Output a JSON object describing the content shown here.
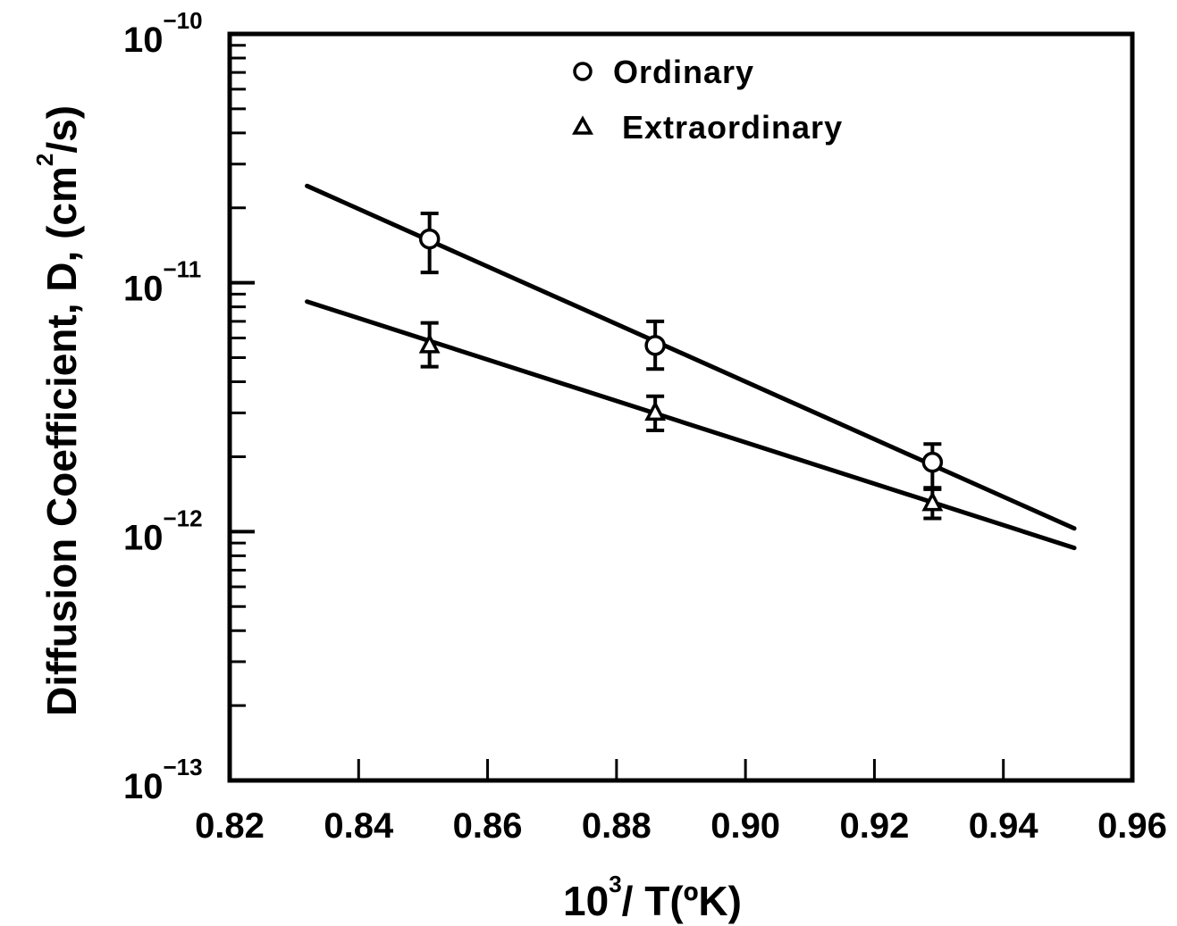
{
  "chart_data": {
    "type": "scatter",
    "title": "",
    "xlabel": {
      "base": "10",
      "sup": "3",
      "rest": "/ T(ºK)"
    },
    "ylabel": {
      "main": "Diffusion Coefficient, D, (cm",
      "sup": "2",
      "rest": "/s)"
    },
    "x_scale": "linear",
    "y_scale": "log",
    "xlim": [
      0.82,
      0.96
    ],
    "ylim": [
      1e-13,
      1e-10
    ],
    "x_ticks": [
      0.82,
      0.84,
      0.86,
      0.88,
      0.9,
      0.92,
      0.94,
      0.96
    ],
    "x_tick_labels": [
      "0.82",
      "0.84",
      "0.86",
      "0.88",
      "0.90",
      "0.92",
      "0.94",
      "0.96"
    ],
    "y_tick_labels": [
      {
        "value": 1e-10,
        "base": "10",
        "exp": "−10"
      },
      {
        "value": 1e-11,
        "base": "10",
        "exp": "−11"
      },
      {
        "value": 1e-12,
        "base": "10",
        "exp": "−12"
      },
      {
        "value": 1e-13,
        "base": "10",
        "exp": "−13"
      }
    ],
    "grid": false,
    "legend_position": "top-center",
    "series": [
      {
        "name": "Ordinary",
        "marker": "circle",
        "points": [
          {
            "x": 0.851,
            "y": 1.5e-11,
            "err_low": 1.1e-11,
            "err_high": 1.9e-11
          },
          {
            "x": 0.886,
            "y": 5.6e-12,
            "err_low": 4.5e-12,
            "err_high": 7e-12
          },
          {
            "x": 0.929,
            "y": 1.9e-12,
            "err_low": 1.5e-12,
            "err_high": 2.25e-12
          }
        ],
        "fit_line": [
          {
            "x": 0.832,
            "y": 2.45e-11
          },
          {
            "x": 0.951,
            "y": 1.03e-12
          }
        ]
      },
      {
        "name": "Extraordinary",
        "marker": "triangle",
        "points": [
          {
            "x": 0.851,
            "y": 5.6e-12,
            "err_low": 4.6e-12,
            "err_high": 6.9e-12
          },
          {
            "x": 0.886,
            "y": 3e-12,
            "err_low": 2.55e-12,
            "err_high": 3.5e-12
          },
          {
            "x": 0.929,
            "y": 1.3e-12,
            "err_low": 1.13e-12,
            "err_high": 1.48e-12
          }
        ],
        "fit_line": [
          {
            "x": 0.832,
            "y": 8.4e-12
          },
          {
            "x": 0.951,
            "y": 8.6e-13
          }
        ]
      }
    ]
  }
}
